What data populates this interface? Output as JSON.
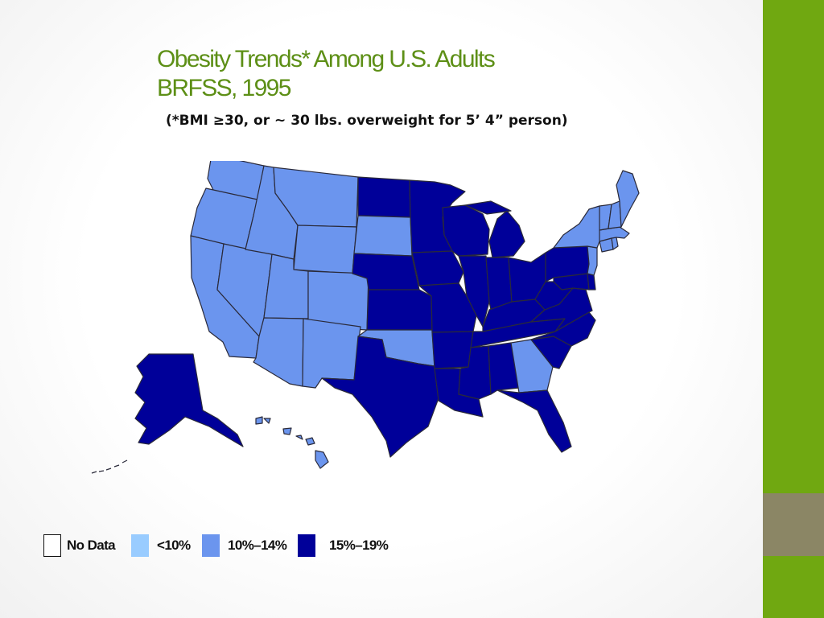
{
  "slide": {
    "title_line1": "Obesity Trends* Among U.S. Adults",
    "title_line2": "BRFSS, 1995",
    "subtitle": "(*BMI ≥30, or ~ 30 lbs. overweight for 5’ 4” person)"
  },
  "colors": {
    "no_data": "#ffffff",
    "lt10": "#99ccff",
    "p10_14": "#6b95ee",
    "p15_19": "#000099",
    "title": "#5d8f16",
    "sidebar_green": "#70a811",
    "sidebar_gray": "#8b8665"
  },
  "legend": [
    {
      "label": "No Data",
      "color": "#ffffff"
    },
    {
      "label": "<10%",
      "color": "#99ccff"
    },
    {
      "label": "10%–14%",
      "color": "#6b95ee"
    },
    {
      "label": "15%–19%",
      "color": "#000099"
    }
  ],
  "map": {
    "regions": [
      {
        "name": "Washington",
        "category": "10%–14%"
      },
      {
        "name": "Oregon",
        "category": "10%–14%"
      },
      {
        "name": "California",
        "category": "10%–14%"
      },
      {
        "name": "Nevada",
        "category": "10%–14%"
      },
      {
        "name": "Idaho",
        "category": "10%–14%"
      },
      {
        "name": "Montana",
        "category": "10%–14%"
      },
      {
        "name": "Wyoming",
        "category": "10%–14%"
      },
      {
        "name": "Utah",
        "category": "10%–14%"
      },
      {
        "name": "Arizona",
        "category": "10%–14%"
      },
      {
        "name": "Colorado",
        "category": "10%–14%"
      },
      {
        "name": "New Mexico",
        "category": "10%–14%"
      },
      {
        "name": "North Dakota",
        "category": "15%–19%"
      },
      {
        "name": "South Dakota",
        "category": "10%–14%"
      },
      {
        "name": "Nebraska",
        "category": "15%–19%"
      },
      {
        "name": "Kansas",
        "category": "15%–19%"
      },
      {
        "name": "Oklahoma",
        "category": "10%–14%"
      },
      {
        "name": "Texas",
        "category": "15%–19%"
      },
      {
        "name": "Minnesota",
        "category": "15%–19%"
      },
      {
        "name": "Iowa",
        "category": "15%–19%"
      },
      {
        "name": "Missouri",
        "category": "15%–19%"
      },
      {
        "name": "Arkansas",
        "category": "15%–19%"
      },
      {
        "name": "Louisiana",
        "category": "15%–19%"
      },
      {
        "name": "Wisconsin",
        "category": "15%–19%"
      },
      {
        "name": "Illinois",
        "category": "15%–19%"
      },
      {
        "name": "Michigan",
        "category": "15%–19%"
      },
      {
        "name": "Indiana",
        "category": "15%–19%"
      },
      {
        "name": "Ohio",
        "category": "15%–19%"
      },
      {
        "name": "Kentucky",
        "category": "15%–19%"
      },
      {
        "name": "Tennessee",
        "category": "15%–19%"
      },
      {
        "name": "Mississippi",
        "category": "15%–19%"
      },
      {
        "name": "Alabama",
        "category": "15%–19%"
      },
      {
        "name": "Georgia",
        "category": "10%–14%"
      },
      {
        "name": "Florida",
        "category": "15%–19%"
      },
      {
        "name": "South Carolina",
        "category": "15%–19%"
      },
      {
        "name": "North Carolina",
        "category": "15%–19%"
      },
      {
        "name": "Virginia",
        "category": "15%–19%"
      },
      {
        "name": "West Virginia",
        "category": "15%–19%"
      },
      {
        "name": "Maryland",
        "category": "15%–19%"
      },
      {
        "name": "Delaware",
        "category": "15%–19%"
      },
      {
        "name": "Pennsylvania",
        "category": "15%–19%"
      },
      {
        "name": "New Jersey",
        "category": "10%–14%"
      },
      {
        "name": "New York",
        "category": "10%–14%"
      },
      {
        "name": "Connecticut",
        "category": "10%–14%"
      },
      {
        "name": "Rhode Island",
        "category": "10%–14%"
      },
      {
        "name": "Massachusetts",
        "category": "10%–14%"
      },
      {
        "name": "Vermont",
        "category": "10%–14%"
      },
      {
        "name": "New Hampshire",
        "category": "10%–14%"
      },
      {
        "name": "Maine",
        "category": "10%–14%"
      },
      {
        "name": "Alaska",
        "category": "15%–19%"
      },
      {
        "name": "Hawaii",
        "category": "10%–14%"
      }
    ]
  }
}
